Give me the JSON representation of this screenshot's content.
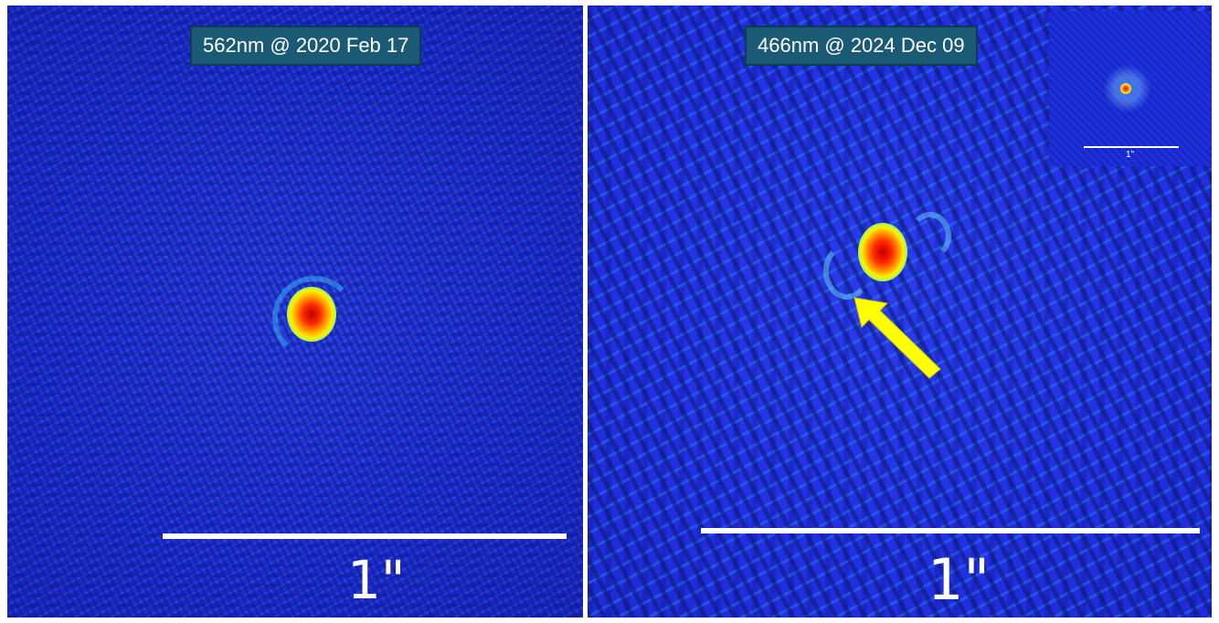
{
  "left_panel": {
    "label": "562nm @ 2020 Feb 17",
    "scale_label": "1\""
  },
  "right_panel": {
    "label": "466nm @ 2024 Dec 09",
    "scale_label": "1\"",
    "inset": {
      "scale_label": "1\""
    },
    "arrow_color": "#ffff00"
  },
  "colors": {
    "background_blue": "#1f2fe6",
    "label_bg": "#1b5a74",
    "scalebar": "#ffffff"
  }
}
